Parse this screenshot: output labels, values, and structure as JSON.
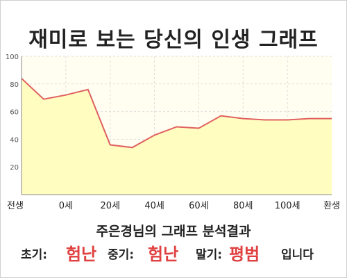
{
  "header": {
    "title": "재미로 보는 당신의 인생 그래프"
  },
  "chart_data": {
    "type": "area",
    "title": "재미로 보는 당신의 인생 그래프",
    "xlabel": "",
    "ylabel": "",
    "categories": [
      "전생",
      "0세",
      "20세",
      "40세",
      "60세",
      "80세",
      "100세",
      "환생"
    ],
    "x": [
      0,
      0.5,
      1,
      1.5,
      2,
      2.5,
      3,
      3.5,
      4,
      4.5,
      5,
      5.5,
      6,
      6.5,
      7
    ],
    "values": [
      84,
      69,
      72,
      76,
      36,
      34,
      43,
      49,
      48,
      57,
      55,
      54,
      54,
      55,
      55
    ],
    "ylim": [
      0,
      100
    ],
    "yticks": [
      20,
      40,
      60,
      80,
      100
    ],
    "grid": true,
    "legend": "none",
    "colors": {
      "line": "#e06060",
      "fill": "#fffdc0",
      "plot_bg": "#fffef0",
      "grid": "#dddddd"
    }
  },
  "result": {
    "title": "주은경님의 그래프 분석결과",
    "early_label": "초기:",
    "early_value": "험난",
    "middle_label": "중기:",
    "middle_value": "험난",
    "late_label": "말기:",
    "late_value": "평범",
    "suffix": "입니다"
  }
}
